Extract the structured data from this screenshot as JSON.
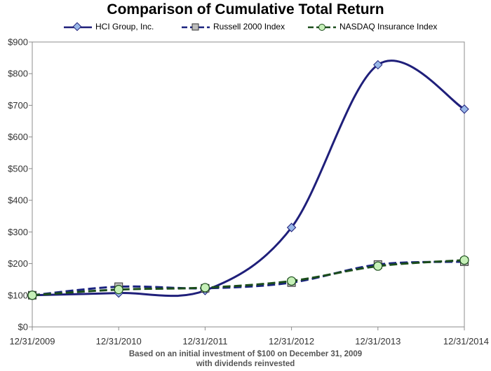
{
  "chart_data": {
    "type": "line",
    "title": "Comparison of Cumulative Total Return",
    "categories": [
      "12/31/2009",
      "12/31/2010",
      "12/31/2011",
      "12/31/2012",
      "12/31/2013",
      "12/31/2014"
    ],
    "ylim": [
      0,
      900
    ],
    "yticks": [
      0,
      100,
      200,
      300,
      400,
      500,
      600,
      700,
      800,
      900
    ],
    "ytick_labels": [
      "$0",
      "$100",
      "$200",
      "$300",
      "$400",
      "$500",
      "$600",
      "$700",
      "$800",
      "$900"
    ],
    "grid": false,
    "legend_position": "top",
    "series": [
      {
        "name": "HCI Group, Inc.",
        "values": [
          100,
          107,
          115,
          314,
          828,
          688
        ],
        "color": "#1f1f7a",
        "marker": "diamond",
        "marker_color": "#99b8e8",
        "dash": "solid"
      },
      {
        "name": "Russell 2000 Index",
        "values": [
          100,
          127,
          122,
          140,
          197,
          206
        ],
        "color": "#1a237e",
        "marker": "square",
        "marker_color": "#bdbdbd",
        "dash": "dashed"
      },
      {
        "name": "NASDAQ Insurance Index",
        "values": [
          100,
          118,
          124,
          145,
          192,
          211
        ],
        "color": "#1b4d1b",
        "marker": "circle",
        "marker_color": "#c6f0b8",
        "dash": "dashed"
      }
    ]
  },
  "footnote": {
    "line1": "Based on an initial investment of $100 on December 31, 2009",
    "line2": "with dividends reinvested"
  }
}
